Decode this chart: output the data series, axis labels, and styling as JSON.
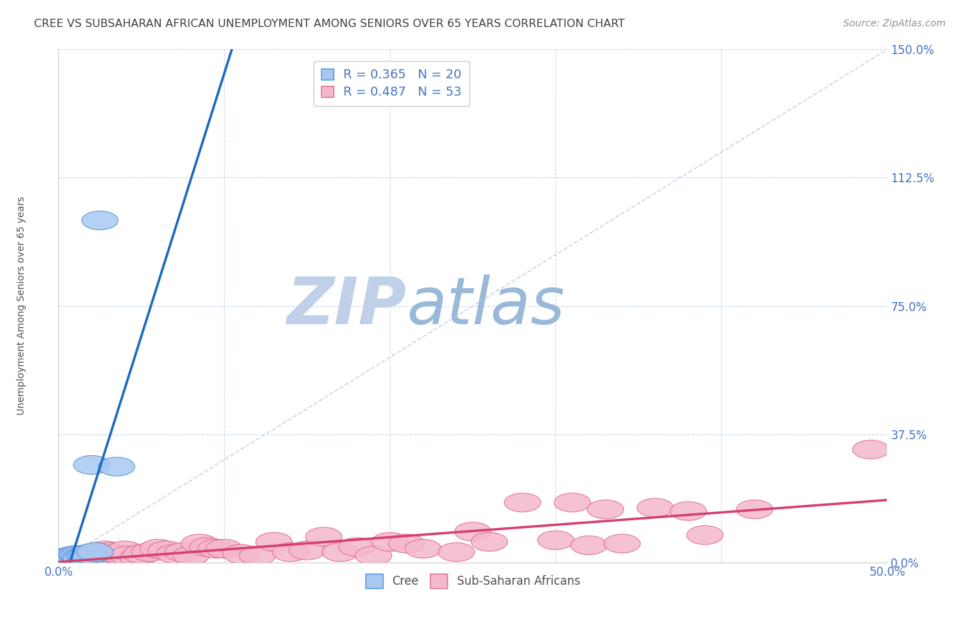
{
  "title": "CREE VS SUBSAHARAN AFRICAN UNEMPLOYMENT AMONG SENIORS OVER 65 YEARS CORRELATION CHART",
  "source": "Source: ZipAtlas.com",
  "ylabel_label": "Unemployment Among Seniors over 65 years",
  "cree_color": "#a8c8f0",
  "cree_edge_color": "#4a90d9",
  "pink_color": "#f4b8cc",
  "pink_edge_color": "#e06888",
  "trend_cree_color": "#1a6abf",
  "trend_pink_color": "#d44070",
  "diag_color": "#b8cce4",
  "legend_r_cree": "R = 0.365",
  "legend_n_cree": "N = 20",
  "legend_r_pink": "R = 0.487",
  "legend_n_pink": "N = 53",
  "legend_text_color": "#4472c4",
  "title_color": "#404040",
  "source_color": "#909090",
  "cree_x": [
    0.002,
    0.003,
    0.004,
    0.005,
    0.006,
    0.007,
    0.008,
    0.009,
    0.01,
    0.011,
    0.012,
    0.013,
    0.014,
    0.016,
    0.017,
    0.018,
    0.02,
    0.022,
    0.025,
    0.035
  ],
  "cree_y": [
    0.005,
    0.01,
    0.008,
    0.015,
    0.012,
    0.01,
    0.018,
    0.02,
    0.015,
    0.022,
    0.018,
    0.012,
    0.01,
    0.02,
    0.015,
    0.025,
    0.285,
    0.03,
    1.0,
    0.28
  ],
  "pink_x": [
    0.003,
    0.006,
    0.01,
    0.012,
    0.015,
    0.018,
    0.02,
    0.022,
    0.025,
    0.028,
    0.03,
    0.035,
    0.038,
    0.04,
    0.042,
    0.048,
    0.05,
    0.055,
    0.06,
    0.065,
    0.07,
    0.075,
    0.08,
    0.085,
    0.09,
    0.095,
    0.1,
    0.11,
    0.12,
    0.13,
    0.14,
    0.15,
    0.16,
    0.17,
    0.18,
    0.19,
    0.2,
    0.21,
    0.22,
    0.24,
    0.25,
    0.26,
    0.28,
    0.3,
    0.31,
    0.32,
    0.33,
    0.34,
    0.36,
    0.38,
    0.39,
    0.42,
    0.49
  ],
  "pink_y": [
    0.005,
    0.008,
    0.012,
    0.01,
    0.015,
    0.01,
    0.025,
    0.02,
    0.018,
    0.035,
    0.03,
    0.025,
    0.022,
    0.035,
    0.02,
    0.015,
    0.025,
    0.03,
    0.04,
    0.035,
    0.025,
    0.03,
    0.02,
    0.055,
    0.045,
    0.04,
    0.04,
    0.025,
    0.02,
    0.06,
    0.03,
    0.035,
    0.075,
    0.03,
    0.045,
    0.02,
    0.06,
    0.055,
    0.04,
    0.03,
    0.09,
    0.06,
    0.175,
    0.065,
    0.175,
    0.05,
    0.155,
    0.055,
    0.16,
    0.15,
    0.08,
    0.155,
    0.33
  ],
  "xlim": [
    0.0,
    0.5
  ],
  "ylim": [
    0.0,
    1.5
  ],
  "ylabel_ticks": [
    0.0,
    0.375,
    0.75,
    1.125,
    1.5
  ],
  "ylabel_labels": [
    "0.0%",
    "37.5%",
    "75.0%",
    "112.5%",
    "150.0%"
  ],
  "xlabel_show_only": [
    0.0,
    0.5
  ],
  "xlabel_show_labels": [
    "0.0%",
    "50.0%"
  ],
  "background_color": "#ffffff",
  "grid_color": "#c8d8e8",
  "watermark_zip_color": "#c0d0e8",
  "watermark_atlas_color": "#9ab8d8",
  "watermark_fontsize": 68
}
